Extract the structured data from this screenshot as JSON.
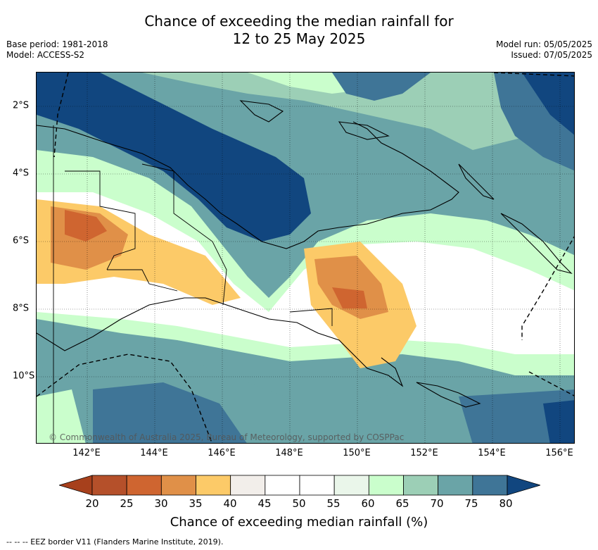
{
  "header": {
    "title_line1": "Chance of exceeding the median rainfall for",
    "title_line2": "12 to 25 May 2025",
    "base_period": "Base period: 1981-2018",
    "model": "Model: ACCESS-S2",
    "model_run": "Model run: 05/05/2025",
    "issued": "Issued: 07/05/2025"
  },
  "map": {
    "credit": "© Commonwealth of Australia 2025, Bureau of Meteorology, supported by COSPPac",
    "lat_labels": [
      "2°S",
      "4°S",
      "6°S",
      "8°S",
      "10°S"
    ],
    "lon_labels": [
      "142°E",
      "144°E",
      "146°E",
      "148°E",
      "150°E",
      "152°E",
      "154°E",
      "156°E"
    ]
  },
  "colorbar": {
    "title": "Chance of exceeding median rainfall (%)",
    "ticks": [
      "20",
      "25",
      "30",
      "35",
      "40",
      "45",
      "50",
      "55",
      "60",
      "65",
      "70",
      "75",
      "80"
    ],
    "colors": [
      "#a7401c",
      "#b5502a",
      "#cf6530",
      "#e09048",
      "#fcca68",
      "#f2eeea",
      "#ffffff",
      "#ffffff",
      "#eaf6ea",
      "#cafecc",
      "#9ccfb6",
      "#6aa4a7",
      "#3f7597",
      "#11467f"
    ]
  },
  "footer": {
    "legend": "--  --  -- EEZ border V11 (Flanders Marine Institute, 2019)."
  }
}
